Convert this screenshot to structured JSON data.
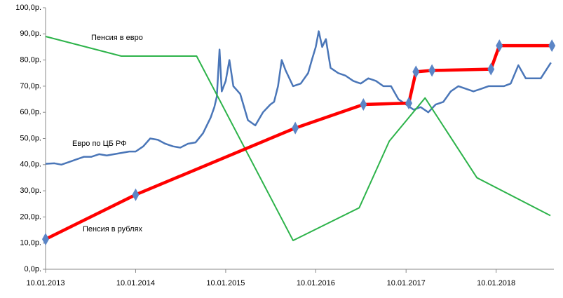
{
  "chart_data": {
    "type": "line",
    "xlim": [
      "2013-01-10",
      "2018-09-01"
    ],
    "xticks": [
      {
        "value": "2013-01-10",
        "label": "10.01.2013"
      },
      {
        "value": "2014-01-10",
        "label": "10.01.2014"
      },
      {
        "value": "2015-01-10",
        "label": "10.01.2015"
      },
      {
        "value": "2016-01-10",
        "label": "10.01.2016"
      },
      {
        "value": "2017-01-10",
        "label": "10.01.2017"
      },
      {
        "value": "2018-01-10",
        "label": "10.01.2018"
      }
    ],
    "ylim": [
      0,
      100
    ],
    "yticks": [
      {
        "value": 0,
        "label": "0,0р."
      },
      {
        "value": 10,
        "label": "10,0р."
      },
      {
        "value": 20,
        "label": "20,0р."
      },
      {
        "value": 30,
        "label": "30,0р."
      },
      {
        "value": 40,
        "label": "40,0р."
      },
      {
        "value": 50,
        "label": "50,0р."
      },
      {
        "value": 60,
        "label": "60,0р."
      },
      {
        "value": 70,
        "label": "70,0р."
      },
      {
        "value": 80,
        "label": "80,0р."
      },
      {
        "value": 90,
        "label": "90,0р."
      },
      {
        "value": 100,
        "label": "100,0р."
      }
    ],
    "grid": false,
    "series": [
      {
        "name": "Евро по ЦБ РФ",
        "color": "#4a76b8",
        "marker": "none",
        "x": [
          "2013-01-10",
          "2013-02-15",
          "2013-03-15",
          "2013-04-15",
          "2013-05-15",
          "2013-06-15",
          "2013-07-15",
          "2013-08-15",
          "2013-09-15",
          "2013-10-15",
          "2013-11-15",
          "2013-12-15",
          "2014-01-10",
          "2014-02-10",
          "2014-03-10",
          "2014-04-10",
          "2014-05-10",
          "2014-06-10",
          "2014-07-10",
          "2014-08-10",
          "2014-09-10",
          "2014-10-10",
          "2014-11-10",
          "2014-11-25",
          "2014-12-05",
          "2014-12-16",
          "2014-12-25",
          "2015-01-10",
          "2015-01-25",
          "2015-02-10",
          "2015-03-10",
          "2015-04-10",
          "2015-05-10",
          "2015-06-10",
          "2015-07-10",
          "2015-07-25",
          "2015-08-10",
          "2015-08-25",
          "2015-09-10",
          "2015-10-10",
          "2015-11-10",
          "2015-12-10",
          "2015-12-25",
          "2016-01-10",
          "2016-01-22",
          "2016-02-05",
          "2016-02-20",
          "2016-03-10",
          "2016-04-10",
          "2016-05-10",
          "2016-06-10",
          "2016-07-10",
          "2016-08-10",
          "2016-09-10",
          "2016-10-10",
          "2016-11-10",
          "2016-12-10",
          "2017-01-10",
          "2017-02-10",
          "2017-03-10",
          "2017-04-10",
          "2017-05-10",
          "2017-06-10",
          "2017-07-10",
          "2017-08-10",
          "2017-09-10",
          "2017-10-10",
          "2017-11-10",
          "2017-12-10",
          "2018-01-10",
          "2018-02-10",
          "2018-03-10",
          "2018-04-10",
          "2018-05-10",
          "2018-06-10",
          "2018-07-10",
          "2018-08-20"
        ],
        "values": [
          40.3,
          40.5,
          40,
          41,
          42,
          43,
          43,
          44,
          43.5,
          44,
          44.5,
          45,
          45,
          47,
          50,
          49.5,
          48,
          47,
          46.5,
          48,
          48.5,
          52,
          58,
          62,
          66,
          84,
          68,
          72,
          80,
          70,
          67,
          57,
          55,
          60,
          63,
          64,
          70,
          80,
          76,
          70,
          71,
          75,
          80,
          85,
          91,
          85,
          88,
          77,
          75,
          74,
          72,
          71,
          73,
          72,
          70,
          70,
          65,
          63,
          61,
          62,
          60,
          63,
          64,
          68,
          70,
          69,
          68,
          69,
          70,
          70,
          70,
          71,
          78,
          73,
          73,
          73,
          79
        ]
      },
      {
        "name": "Пенсия в евро",
        "color": "#2db34a",
        "marker": "none",
        "x": [
          "2013-01-10",
          "2013-11-13",
          "2014-09-14",
          "2015-10-10",
          "2016-07-04",
          "2016-11-03",
          "2017-03-28",
          "2017-10-24",
          "2018-08-18"
        ],
        "values": [
          89,
          81.5,
          81.5,
          11,
          23.5,
          49,
          65.5,
          35,
          20.5
        ]
      },
      {
        "name": "Пенсия в рублях",
        "color": "#ff0000",
        "marker": "diamond",
        "marker_color": "#5b85c6",
        "x": [
          "2013-01-10",
          "2014-01-10",
          "2015-10-19",
          "2016-07-21",
          "2017-01-21",
          "2017-02-19",
          "2017-04-25",
          "2017-12-20",
          "2018-01-23",
          "2018-08-24"
        ],
        "values": [
          11.5,
          28.5,
          54,
          63,
          63.5,
          75.5,
          76,
          76.5,
          85.5,
          85.5
        ]
      }
    ]
  }
}
